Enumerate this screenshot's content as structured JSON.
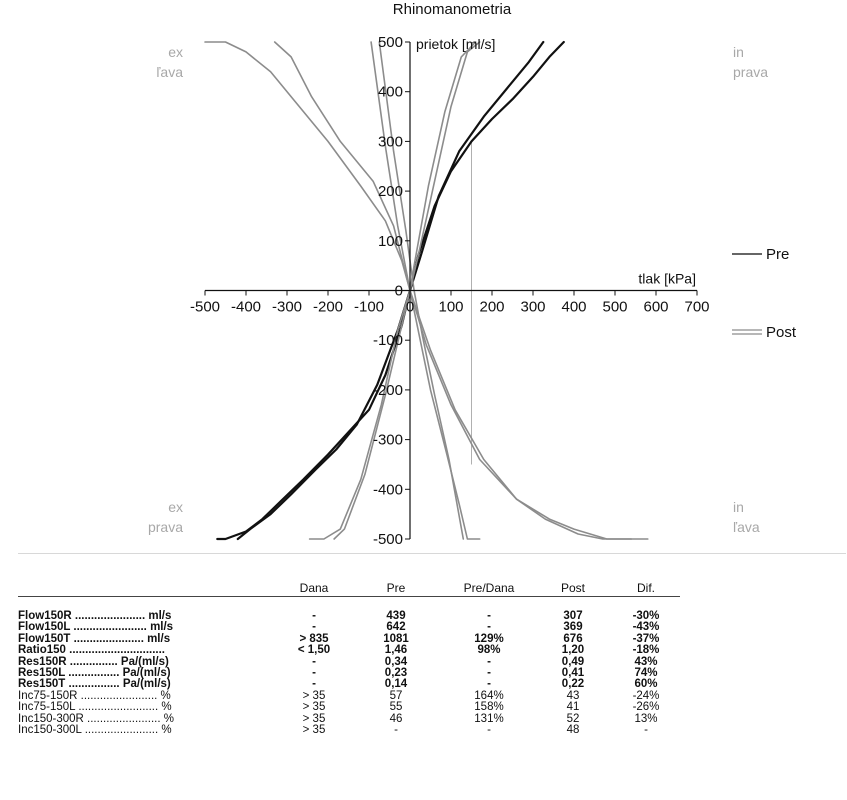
{
  "chart_data": {
    "type": "line",
    "title": "Rhinomanometria",
    "xlabel": "tlak [kPa]",
    "ylabel": "prietok [ml/s]",
    "xlim": [
      -500,
      700
    ],
    "ylim": [
      -500,
      500
    ],
    "xticks": [
      -500,
      -400,
      -300,
      -200,
      -100,
      0,
      100,
      200,
      300,
      400,
      500,
      600,
      700
    ],
    "yticks": [
      -500,
      -400,
      -300,
      -200,
      -100,
      0,
      100,
      200,
      300,
      400,
      500
    ],
    "xtick_labels": [
      "-500",
      "-400",
      "-300",
      "-200",
      "-100",
      "0",
      "100",
      "200",
      "300",
      "400",
      "500",
      "600",
      "700"
    ],
    "ytick_labels": [
      "-500",
      "-400",
      "-300",
      "-200",
      "-100",
      "0",
      "100",
      "200",
      "300",
      "400",
      "500"
    ],
    "quadrant_labels": {
      "top_left": [
        "ex",
        "ľava"
      ],
      "top_right": [
        "in",
        "prava"
      ],
      "bottom_left": [
        "ex",
        "prava"
      ],
      "bottom_right": [
        "in",
        "ľava"
      ]
    },
    "legend": [
      "Pre",
      "Post"
    ],
    "legend_position": "right",
    "reference_line_x": 150,
    "series": [
      {
        "name": "Pre",
        "color": "#111111",
        "width": 2.2,
        "points": [
          [
            0,
            0
          ],
          [
            20,
            70
          ],
          [
            60,
            170
          ],
          [
            100,
            240
          ],
          [
            150,
            300
          ],
          [
            200,
            345
          ],
          [
            250,
            385
          ],
          [
            300,
            430
          ],
          [
            340,
            470
          ],
          [
            375,
            500
          ]
        ]
      },
      {
        "name": "Pre",
        "color": "#111111",
        "width": 2.2,
        "points": [
          [
            0,
            0
          ],
          [
            30,
            80
          ],
          [
            70,
            190
          ],
          [
            120,
            280
          ],
          [
            180,
            350
          ],
          [
            240,
            410
          ],
          [
            290,
            460
          ],
          [
            325,
            500
          ]
        ]
      },
      {
        "name": "Pre",
        "color": "#111111",
        "width": 2.2,
        "points": [
          [
            0,
            0
          ],
          [
            -20,
            -70
          ],
          [
            -60,
            -170
          ],
          [
            -100,
            -240
          ],
          [
            -150,
            -285
          ],
          [
            -200,
            -330
          ],
          [
            -260,
            -380
          ],
          [
            -310,
            -420
          ],
          [
            -360,
            -460
          ],
          [
            -400,
            -485
          ],
          [
            -450,
            -500
          ],
          [
            -470,
            -500
          ]
        ]
      },
      {
        "name": "Pre",
        "color": "#111111",
        "width": 2.2,
        "points": [
          [
            0,
            0
          ],
          [
            -30,
            -80
          ],
          [
            -80,
            -190
          ],
          [
            -130,
            -270
          ],
          [
            -180,
            -320
          ],
          [
            -230,
            -360
          ],
          [
            -290,
            -410
          ],
          [
            -340,
            -450
          ],
          [
            -390,
            -480
          ],
          [
            -420,
            -500
          ]
        ]
      },
      {
        "name": "Post",
        "color": "#8c8c8c",
        "width": 1.6,
        "points": [
          [
            -95,
            500
          ],
          [
            -60,
            290
          ],
          [
            -30,
            130
          ],
          [
            0,
            0
          ],
          [
            20,
            -80
          ],
          [
            50,
            -200
          ],
          [
            90,
            -330
          ],
          [
            120,
            -430
          ],
          [
            140,
            -500
          ],
          [
            170,
            -500
          ]
        ]
      },
      {
        "name": "Post",
        "color": "#8c8c8c",
        "width": 1.6,
        "points": [
          [
            -75,
            500
          ],
          [
            -40,
            280
          ],
          [
            -10,
            120
          ],
          [
            10,
            0
          ],
          [
            30,
            -90
          ],
          [
            60,
            -210
          ],
          [
            95,
            -340
          ],
          [
            130,
            -500
          ]
        ]
      },
      {
        "name": "Post",
        "color": "#8c8c8c",
        "width": 1.6,
        "points": [
          [
            170,
            500
          ],
          [
            140,
            480
          ],
          [
            100,
            370
          ],
          [
            60,
            220
          ],
          [
            20,
            70
          ],
          [
            0,
            0
          ],
          [
            -20,
            -70
          ],
          [
            -60,
            -210
          ],
          [
            -110,
            -370
          ],
          [
            -160,
            -480
          ],
          [
            -185,
            -500
          ]
        ]
      },
      {
        "name": "Post",
        "color": "#8c8c8c",
        "width": 1.6,
        "points": [
          [
            160,
            500
          ],
          [
            125,
            470
          ],
          [
            85,
            360
          ],
          [
            45,
            210
          ],
          [
            10,
            50
          ],
          [
            0,
            0
          ],
          [
            -30,
            -80
          ],
          [
            -70,
            -230
          ],
          [
            -120,
            -380
          ],
          [
            -170,
            -480
          ],
          [
            -210,
            -500
          ],
          [
            -245,
            -500
          ]
        ]
      },
      {
        "name": "Post",
        "color": "#8c8c8c",
        "width": 1.6,
        "points": [
          [
            -500,
            500
          ],
          [
            -450,
            500
          ],
          [
            -400,
            480
          ],
          [
            -340,
            440
          ],
          [
            -280,
            380
          ],
          [
            -200,
            300
          ],
          [
            -120,
            210
          ],
          [
            -60,
            140
          ],
          [
            -20,
            60
          ],
          [
            0,
            0
          ],
          [
            40,
            -110
          ],
          [
            100,
            -230
          ],
          [
            170,
            -340
          ],
          [
            260,
            -420
          ],
          [
            340,
            -460
          ],
          [
            400,
            -480
          ],
          [
            480,
            -500
          ],
          [
            580,
            -500
          ]
        ]
      },
      {
        "name": "Post",
        "color": "#8c8c8c",
        "width": 1.6,
        "points": [
          [
            -330,
            500
          ],
          [
            -290,
            470
          ],
          [
            -240,
            390
          ],
          [
            -170,
            300
          ],
          [
            -90,
            220
          ],
          [
            -40,
            130
          ],
          [
            0,
            0
          ],
          [
            50,
            -120
          ],
          [
            110,
            -240
          ],
          [
            180,
            -340
          ],
          [
            260,
            -420
          ],
          [
            330,
            -460
          ],
          [
            410,
            -490
          ],
          [
            470,
            -500
          ],
          [
            540,
            -500
          ]
        ]
      }
    ]
  },
  "table": {
    "headers": [
      "",
      "Dana",
      "Pre",
      "Pre/Dana",
      "Post",
      "Dif."
    ],
    "rows": [
      {
        "bold": true,
        "cells": [
          "Flow150R ...................... ml/s",
          "-",
          "439",
          "-",
          "307",
          "-30%"
        ]
      },
      {
        "bold": true,
        "cells": [
          "Flow150L ....................... ml/s",
          "-",
          "642",
          "-",
          "369",
          "-43%"
        ]
      },
      {
        "bold": true,
        "cells": [
          "Flow150T ...................... ml/s",
          "> 835",
          "1081",
          "129%",
          "676",
          "-37%"
        ]
      },
      {
        "bold": true,
        "cells": [
          "Ratio150 ..............................",
          "< 1,50",
          "1,46",
          "98%",
          "1,20",
          "-18%"
        ]
      },
      {
        "bold": true,
        "cells": [
          "Res150R ............... Pa/(ml/s)",
          "-",
          "0,34",
          "-",
          "0,49",
          "43%"
        ]
      },
      {
        "bold": true,
        "cells": [
          "Res150L ................ Pa/(ml/s)",
          "-",
          "0,23",
          "-",
          "0,41",
          "74%"
        ]
      },
      {
        "bold": true,
        "cells": [
          "Res150T ................ Pa/(ml/s)",
          "-",
          "0,14",
          "-",
          "0,22",
          "60%"
        ]
      },
      {
        "bold": false,
        "cells": [
          "Inc75-150R ........................ %",
          "> 35",
          "57",
          "164%",
          "43",
          "-24%"
        ]
      },
      {
        "bold": false,
        "cells": [
          "Inc75-150L ......................... %",
          "> 35",
          "55",
          "158%",
          "41",
          "-26%"
        ]
      },
      {
        "bold": false,
        "cells": [
          "Inc150-300R ....................... %",
          "> 35",
          "46",
          "131%",
          "52",
          "13%"
        ]
      },
      {
        "bold": false,
        "cells": [
          "Inc150-300L ....................... %",
          "> 35",
          "-",
          "-",
          "48",
          "-"
        ]
      }
    ]
  }
}
